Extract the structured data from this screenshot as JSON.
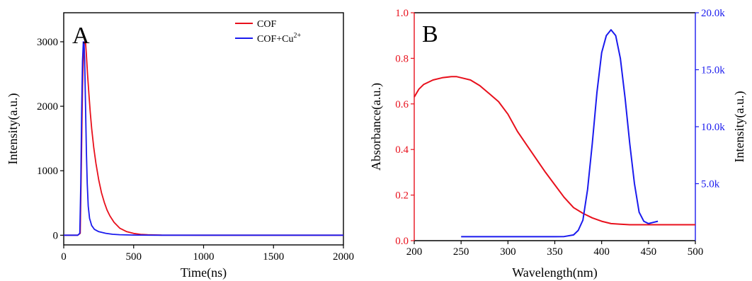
{
  "colors": {
    "red": "#e8101c",
    "blue": "#1a1aee",
    "black": "#000000"
  },
  "chart_data": [
    {
      "type": "line",
      "panel_label": "A",
      "xlabel": "Time(ns)",
      "ylabel": "Intensity(a.u.)",
      "xlim": [
        0,
        2000
      ],
      "ylim": [
        -150,
        3450
      ],
      "xticks": [
        0,
        500,
        1000,
        1500,
        2000
      ],
      "yticks": [
        0,
        1000,
        2000,
        3000
      ],
      "legend_position": "top-right",
      "grid": false,
      "series": [
        {
          "name": "COF",
          "color": "#e8101c",
          "x": [
            0,
            100,
            118,
            126,
            134,
            142,
            150,
            156,
            162,
            170,
            180,
            190,
            200,
            215,
            230,
            250,
            270,
            290,
            310,
            330,
            360,
            400,
            450,
            500,
            550,
            600,
            700,
            1000,
            1500,
            2000
          ],
          "y": [
            0,
            0,
            30,
            1100,
            2300,
            2900,
            3000,
            2990,
            2800,
            2500,
            2200,
            1900,
            1650,
            1350,
            1120,
            860,
            660,
            510,
            390,
            300,
            200,
            110,
            55,
            28,
            14,
            7,
            2,
            0,
            0,
            0
          ]
        },
        {
          "name": "COF+Cu",
          "name_sup": "2+",
          "color": "#1a1aee",
          "x": [
            0,
            100,
            115,
            122,
            128,
            134,
            140,
            146,
            150,
            156,
            162,
            168,
            175,
            185,
            200,
            220,
            250,
            300,
            350,
            400,
            500,
            700,
            1000,
            1500,
            2000
          ],
          "y": [
            0,
            0,
            30,
            800,
            1900,
            2700,
            3000,
            2950,
            2700,
            2000,
            1300,
            800,
            450,
            260,
            150,
            90,
            55,
            30,
            15,
            8,
            3,
            0,
            0,
            0,
            0
          ]
        }
      ]
    },
    {
      "type": "line",
      "panel_label": "B",
      "xlabel": "Wavelength(nm)",
      "ylabel": "Absorbance(a.u.)",
      "y2label": "Intensity(a.u.)",
      "xlim": [
        200,
        500
      ],
      "ylim": [
        0,
        1.0
      ],
      "y2lim": [
        0,
        20000
      ],
      "xticks": [
        200,
        250,
        300,
        350,
        400,
        450,
        500
      ],
      "yticks": [
        0.0,
        0.2,
        0.4,
        0.6,
        0.8,
        1.0
      ],
      "ytick_labels": [
        "0.0",
        "0.2",
        "0.4",
        "0.6",
        "0.8",
        "1.0"
      ],
      "y2ticks": [
        5000,
        10000,
        15000,
        20000
      ],
      "y2tick_labels": [
        "5.0k",
        "10.0k",
        "15.0k",
        "20.0k"
      ],
      "grid": false,
      "series": [
        {
          "axis": "left",
          "color": "#e8101c",
          "x": [
            200,
            205,
            210,
            220,
            230,
            240,
            245,
            250,
            260,
            270,
            280,
            290,
            300,
            310,
            320,
            330,
            340,
            350,
            360,
            370,
            380,
            390,
            400,
            410,
            420,
            430,
            450,
            470,
            500
          ],
          "y": [
            0.63,
            0.665,
            0.685,
            0.705,
            0.715,
            0.72,
            0.72,
            0.715,
            0.705,
            0.68,
            0.645,
            0.61,
            0.555,
            0.48,
            0.42,
            0.36,
            0.3,
            0.245,
            0.19,
            0.145,
            0.12,
            0.1,
            0.085,
            0.075,
            0.072,
            0.07,
            0.07,
            0.07,
            0.07
          ]
        },
        {
          "axis": "right",
          "color": "#1a1aee",
          "x": [
            250,
            300,
            350,
            360,
            370,
            375,
            380,
            385,
            390,
            395,
            400,
            405,
            410,
            415,
            420,
            425,
            430,
            435,
            440,
            445,
            450,
            455,
            460
          ],
          "y": [
            350,
            350,
            350,
            360,
            500,
            900,
            1800,
            4500,
            8500,
            13000,
            16500,
            18000,
            18500,
            18000,
            16000,
            12500,
            8500,
            5000,
            2500,
            1700,
            1500,
            1600,
            1700
          ]
        }
      ]
    }
  ]
}
